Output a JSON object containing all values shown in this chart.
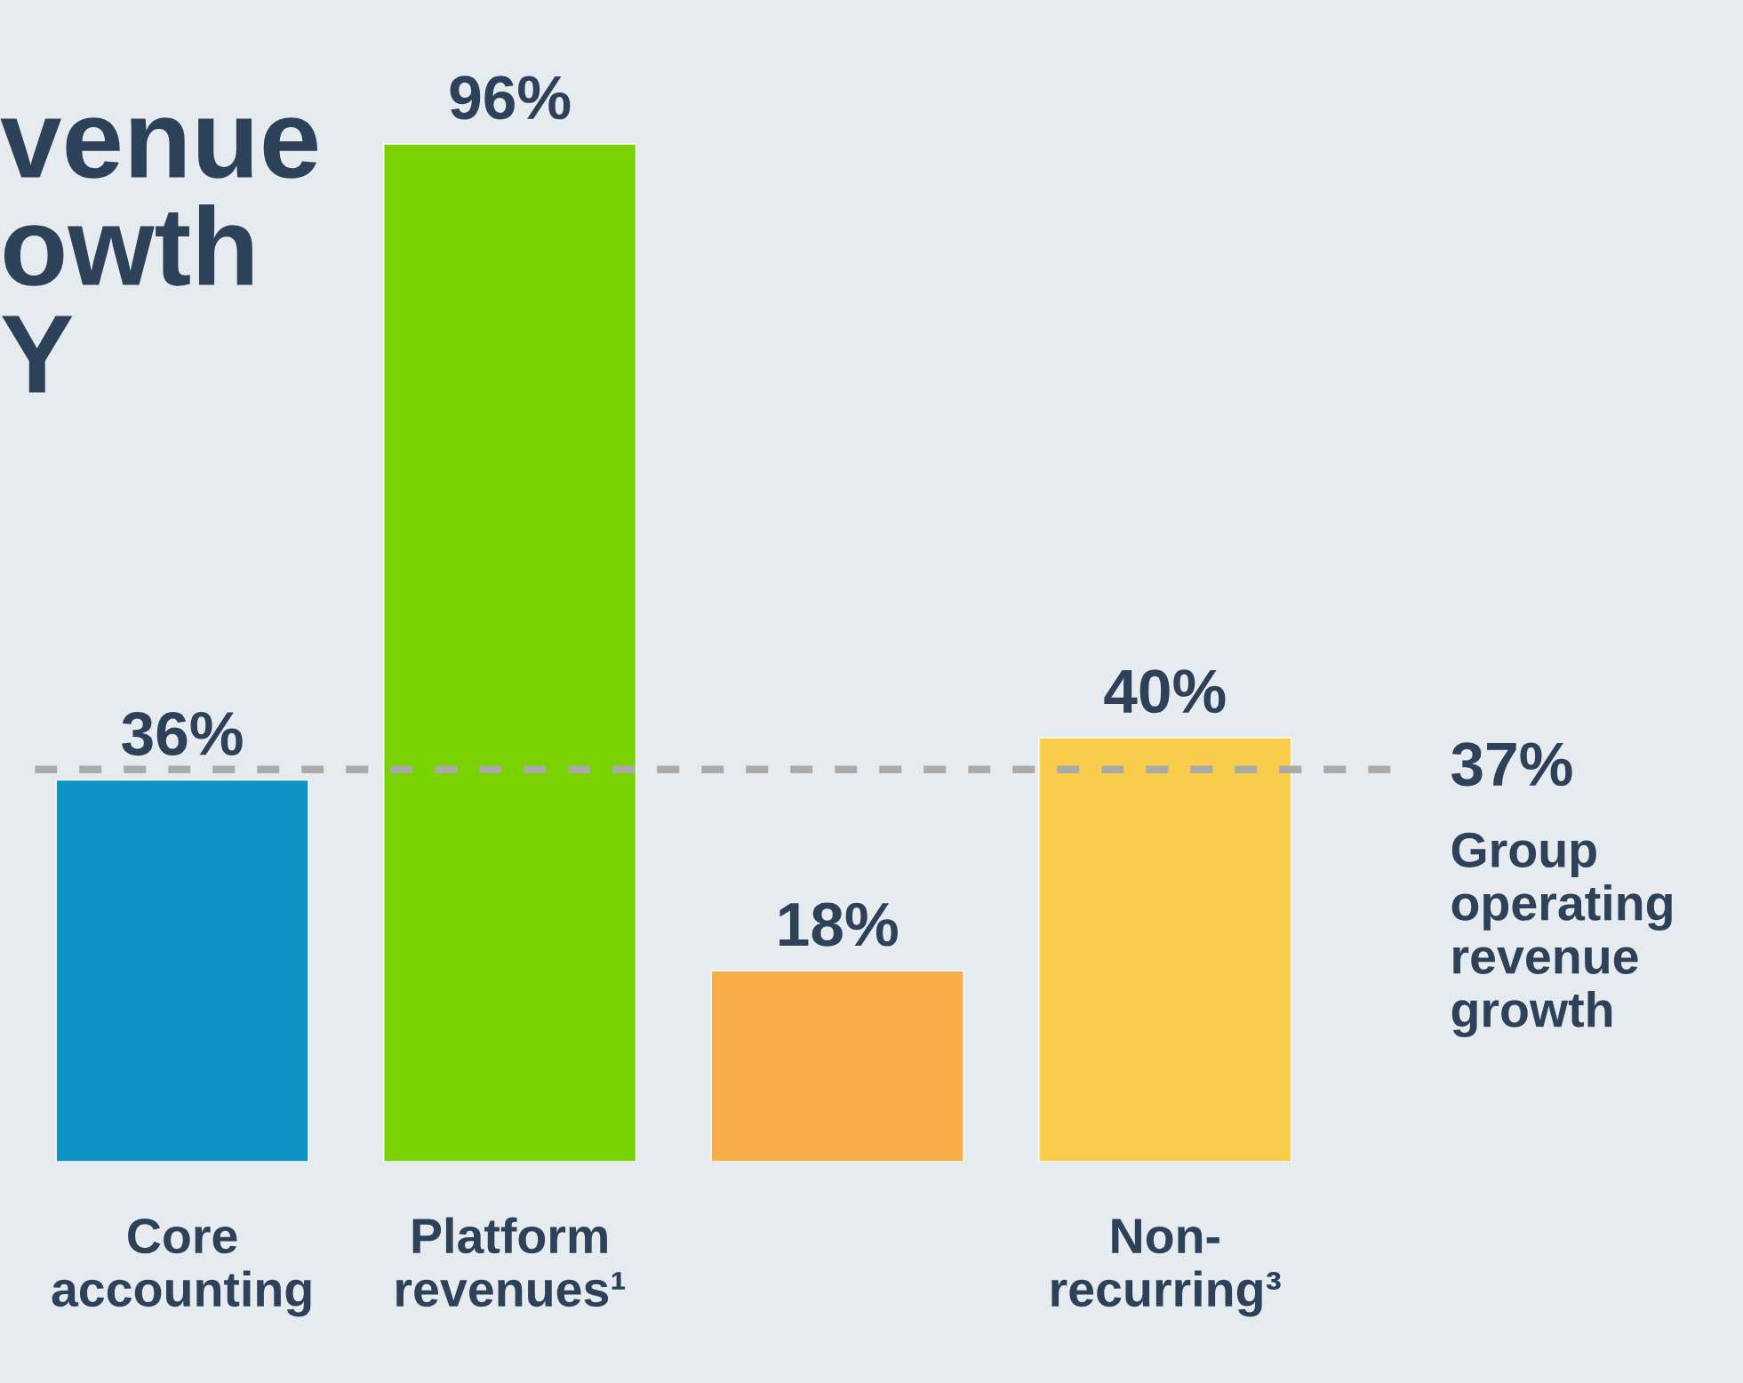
{
  "chart_data": {
    "type": "bar",
    "title": "venue\nowth\nY",
    "categories": [
      "Core\naccounting",
      "Platform\nrevenues¹",
      null,
      "Non-\nrecurring³"
    ],
    "values": [
      36,
      96,
      18,
      40
    ],
    "colors": [
      "#0e93c4",
      "#7ad200",
      "#f8ae48",
      "#f7cd4b"
    ],
    "value_labels": [
      "36%",
      "96%",
      "18%",
      "40%"
    ],
    "ref_lines": [
      {
        "axis": "y",
        "value": 37,
        "label": "37%",
        "color": "#aaaaaa",
        "line_style": "dashed"
      }
    ],
    "annotations": [
      "Group\noperating\nrevenue\ngrowth"
    ]
  }
}
